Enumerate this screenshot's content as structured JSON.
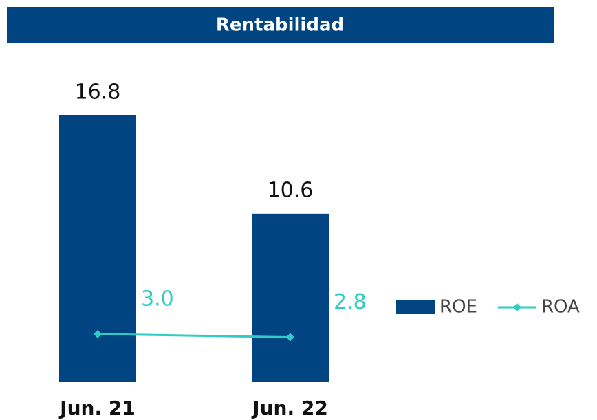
{
  "chart_data": {
    "type": "bar",
    "title": "Rentabilidad",
    "categories": [
      "Jun. 21",
      "Jun. 22"
    ],
    "series": [
      {
        "name": "ROE",
        "type": "bar",
        "color": "#004481",
        "values": [
          16.8,
          10.6
        ]
      },
      {
        "name": "ROA",
        "type": "line",
        "color": "#2dccc4",
        "values": [
          3,
          2.8
        ],
        "value_labels": [
          "3.0",
          "2.8"
        ]
      }
    ],
    "legend": "right"
  }
}
